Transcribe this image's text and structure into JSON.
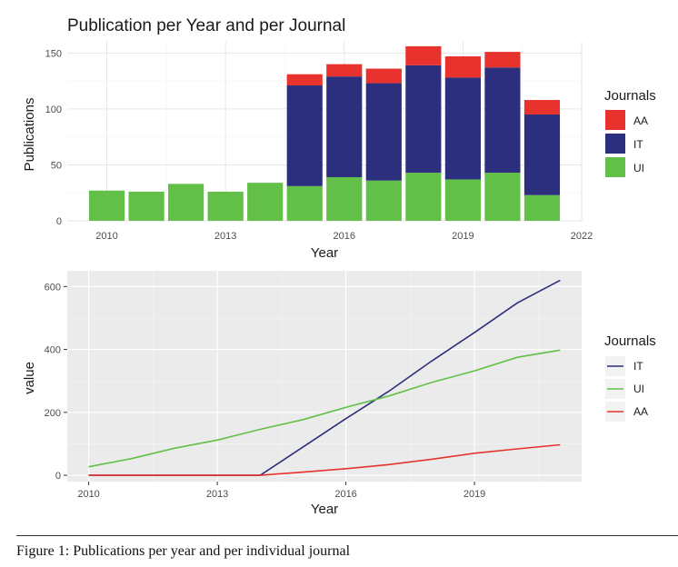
{
  "colors": {
    "AA": "#e8322d",
    "IT": "#2b2f7d",
    "UI": "#62bf47",
    "panel_bg": "#ebebeb"
  },
  "chart_data": [
    {
      "type": "bar",
      "stacked": true,
      "title": "Publication per Year and per Journal",
      "xlabel": "Year",
      "ylabel": "Publications",
      "xlim": [
        2009.0,
        2022.0
      ],
      "ylim": [
        0,
        160
      ],
      "x_ticks": [
        "2010",
        "2013",
        "2016",
        "2019",
        "2022"
      ],
      "y_ticks": [
        "0",
        "50",
        "100",
        "150"
      ],
      "grid": true,
      "legend_title": "Journals",
      "legend_position": "right",
      "categories": [
        2010,
        2011,
        2012,
        2013,
        2014,
        2015,
        2016,
        2017,
        2018,
        2019,
        2020,
        2021
      ],
      "series": [
        {
          "name": "UI",
          "values": [
            27,
            26,
            33,
            26,
            34,
            31,
            39,
            36,
            43,
            37,
            43,
            23
          ]
        },
        {
          "name": "IT",
          "values": [
            0,
            0,
            0,
            0,
            0,
            90,
            90,
            87,
            96,
            91,
            94,
            72
          ]
        },
        {
          "name": "AA",
          "values": [
            0,
            0,
            0,
            0,
            0,
            10,
            11,
            13,
            17,
            19,
            14,
            13
          ]
        }
      ]
    },
    {
      "type": "line",
      "xlabel": "Year",
      "ylabel": "value",
      "xlim": [
        2009.5,
        2021.5
      ],
      "ylim": [
        -20,
        650
      ],
      "x_ticks": [
        "2010",
        "2013",
        "2016",
        "2019"
      ],
      "y_ticks": [
        "0",
        "200",
        "400",
        "600"
      ],
      "grid": true,
      "legend_title": "Journals",
      "legend_position": "right",
      "x": [
        2010,
        2011,
        2012,
        2013,
        2014,
        2015,
        2016,
        2017,
        2018,
        2019,
        2020,
        2021
      ],
      "series": [
        {
          "name": "IT",
          "values": [
            0,
            0,
            0,
            0,
            0,
            90,
            180,
            267,
            363,
            454,
            548,
            620
          ]
        },
        {
          "name": "UI",
          "values": [
            27,
            53,
            86,
            112,
            146,
            177,
            216,
            252,
            295,
            332,
            375,
            398
          ]
        },
        {
          "name": "AA",
          "values": [
            0,
            0,
            0,
            0,
            0,
            10,
            21,
            34,
            51,
            70,
            84,
            97
          ]
        }
      ]
    }
  ],
  "caption": "Figure 1: Publications per year and per individual journal"
}
